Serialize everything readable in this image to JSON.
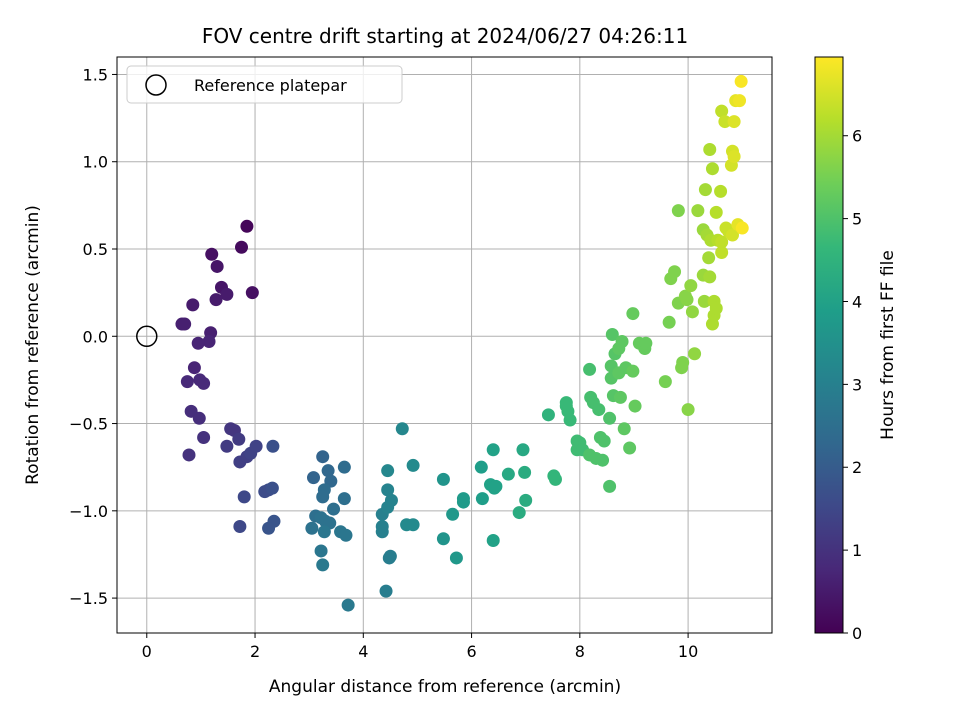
{
  "chart_data": {
    "type": "scatter",
    "title": "FOV centre drift starting at 2024/06/27 04:26:11",
    "xlabel": "Angular distance from reference (arcmin)",
    "ylabel": "Rotation from reference (arcmin)",
    "xlim": [
      -0.55,
      11.55
    ],
    "ylim": [
      -1.7,
      1.6
    ],
    "xticks": [
      0,
      2,
      4,
      6,
      8,
      10
    ],
    "xtick_labels": [
      "0",
      "2",
      "4",
      "6",
      "8",
      "10"
    ],
    "yticks": [
      -1.5,
      -1.0,
      -0.5,
      0.0,
      0.5,
      1.0,
      1.5
    ],
    "ytick_labels": [
      "−1.5",
      "−1.0",
      "−0.5",
      "0.0",
      "0.5",
      "1.0",
      "1.5"
    ],
    "grid": true,
    "legend": {
      "position": "top-left",
      "entries": [
        {
          "label": "Reference platepar",
          "marker": "open-circle"
        }
      ]
    },
    "reference_point": {
      "x": 0,
      "y": 0
    },
    "colorbar": {
      "label": "Hours from first FF file",
      "colormap": "viridis",
      "range": [
        0,
        6.95
      ],
      "ticks": [
        0,
        1,
        2,
        3,
        4,
        5,
        6
      ],
      "tick_labels": [
        "0",
        "1",
        "2",
        "3",
        "4",
        "5",
        "6"
      ]
    },
    "points": [
      {
        "x": 1.85,
        "y": 0.63,
        "h": 0.1
      },
      {
        "x": 1.75,
        "y": 0.51,
        "h": 0.2
      },
      {
        "x": 1.95,
        "y": 0.25,
        "h": 0.3
      },
      {
        "x": 1.2,
        "y": 0.47,
        "h": 0.3
      },
      {
        "x": 1.3,
        "y": 0.4,
        "h": 0.4
      },
      {
        "x": 1.38,
        "y": 0.28,
        "h": 0.4
      },
      {
        "x": 1.48,
        "y": 0.24,
        "h": 0.5
      },
      {
        "x": 1.28,
        "y": 0.21,
        "h": 0.5
      },
      {
        "x": 0.85,
        "y": 0.18,
        "h": 0.5
      },
      {
        "x": 0.65,
        "y": 0.07,
        "h": 0.6
      },
      {
        "x": 0.7,
        "y": 0.07,
        "h": 0.6
      },
      {
        "x": 1.18,
        "y": 0.02,
        "h": 0.6
      },
      {
        "x": 1.15,
        "y": -0.03,
        "h": 0.7
      },
      {
        "x": 0.95,
        "y": -0.04,
        "h": 0.7
      },
      {
        "x": 0.88,
        "y": -0.18,
        "h": 0.7
      },
      {
        "x": 0.75,
        "y": -0.26,
        "h": 0.8
      },
      {
        "x": 0.98,
        "y": -0.25,
        "h": 0.8
      },
      {
        "x": 1.05,
        "y": -0.27,
        "h": 0.8
      },
      {
        "x": 0.82,
        "y": -0.43,
        "h": 0.9
      },
      {
        "x": 0.97,
        "y": -0.47,
        "h": 0.9
      },
      {
        "x": 1.05,
        "y": -0.58,
        "h": 1.0
      },
      {
        "x": 0.78,
        "y": -0.68,
        "h": 1.0
      },
      {
        "x": 1.55,
        "y": -0.53,
        "h": 1.1
      },
      {
        "x": 1.62,
        "y": -0.54,
        "h": 1.1
      },
      {
        "x": 1.48,
        "y": -0.63,
        "h": 1.2
      },
      {
        "x": 1.7,
        "y": -0.59,
        "h": 1.2
      },
      {
        "x": 1.72,
        "y": -0.72,
        "h": 1.3
      },
      {
        "x": 1.85,
        "y": -0.69,
        "h": 1.3
      },
      {
        "x": 1.92,
        "y": -0.67,
        "h": 1.4
      },
      {
        "x": 2.02,
        "y": -0.63,
        "h": 1.4
      },
      {
        "x": 1.8,
        "y": -0.92,
        "h": 1.5
      },
      {
        "x": 1.72,
        "y": -1.09,
        "h": 1.5
      },
      {
        "x": 2.18,
        "y": -0.89,
        "h": 1.6
      },
      {
        "x": 2.25,
        "y": -0.88,
        "h": 1.6
      },
      {
        "x": 2.32,
        "y": -0.87,
        "h": 1.7
      },
      {
        "x": 2.33,
        "y": -0.63,
        "h": 1.7
      },
      {
        "x": 2.35,
        "y": -1.06,
        "h": 1.8
      },
      {
        "x": 2.25,
        "y": -1.1,
        "h": 1.8
      },
      {
        "x": 3.25,
        "y": -0.69,
        "h": 2.2
      },
      {
        "x": 3.08,
        "y": -0.81,
        "h": 2.2
      },
      {
        "x": 3.35,
        "y": -0.77,
        "h": 2.3
      },
      {
        "x": 3.4,
        "y": -0.83,
        "h": 2.3
      },
      {
        "x": 3.28,
        "y": -0.88,
        "h": 2.4
      },
      {
        "x": 3.25,
        "y": -0.92,
        "h": 2.4
      },
      {
        "x": 3.45,
        "y": -0.99,
        "h": 2.5
      },
      {
        "x": 3.65,
        "y": -0.75,
        "h": 2.4
      },
      {
        "x": 3.65,
        "y": -0.93,
        "h": 2.5
      },
      {
        "x": 3.12,
        "y": -1.03,
        "h": 2.5
      },
      {
        "x": 3.22,
        "y": -1.04,
        "h": 2.6
      },
      {
        "x": 3.3,
        "y": -1.06,
        "h": 2.6
      },
      {
        "x": 3.38,
        "y": -1.07,
        "h": 2.6
      },
      {
        "x": 3.05,
        "y": -1.1,
        "h": 2.6
      },
      {
        "x": 3.28,
        "y": -1.12,
        "h": 2.7
      },
      {
        "x": 3.58,
        "y": -1.12,
        "h": 2.7
      },
      {
        "x": 3.68,
        "y": -1.14,
        "h": 2.7
      },
      {
        "x": 3.22,
        "y": -1.23,
        "h": 2.7
      },
      {
        "x": 3.25,
        "y": -1.31,
        "h": 2.8
      },
      {
        "x": 3.72,
        "y": -1.54,
        "h": 2.8
      },
      {
        "x": 4.42,
        "y": -1.46,
        "h": 2.9
      },
      {
        "x": 4.48,
        "y": -1.27,
        "h": 2.9
      },
      {
        "x": 4.5,
        "y": -1.26,
        "h": 2.9
      },
      {
        "x": 4.35,
        "y": -1.12,
        "h": 3.0
      },
      {
        "x": 4.35,
        "y": -1.09,
        "h": 3.0
      },
      {
        "x": 4.35,
        "y": -1.02,
        "h": 3.0
      },
      {
        "x": 4.45,
        "y": -0.98,
        "h": 3.1
      },
      {
        "x": 4.52,
        "y": -0.94,
        "h": 3.1
      },
      {
        "x": 4.45,
        "y": -0.88,
        "h": 3.1
      },
      {
        "x": 4.45,
        "y": -0.77,
        "h": 3.2
      },
      {
        "x": 4.72,
        "y": -0.53,
        "h": 3.2
      },
      {
        "x": 4.92,
        "y": -0.74,
        "h": 3.3
      },
      {
        "x": 4.8,
        "y": -1.08,
        "h": 3.3
      },
      {
        "x": 4.92,
        "y": -1.08,
        "h": 3.3
      },
      {
        "x": 5.48,
        "y": -0.82,
        "h": 3.6
      },
      {
        "x": 5.48,
        "y": -1.16,
        "h": 3.6
      },
      {
        "x": 5.65,
        "y": -1.02,
        "h": 3.7
      },
      {
        "x": 5.72,
        "y": -1.27,
        "h": 3.7
      },
      {
        "x": 5.85,
        "y": -0.93,
        "h": 3.8
      },
      {
        "x": 5.85,
        "y": -0.95,
        "h": 3.8
      },
      {
        "x": 6.18,
        "y": -0.75,
        "h": 3.9
      },
      {
        "x": 6.2,
        "y": -0.93,
        "h": 3.9
      },
      {
        "x": 6.35,
        "y": -0.85,
        "h": 4.0
      },
      {
        "x": 6.4,
        "y": -0.65,
        "h": 4.0
      },
      {
        "x": 6.42,
        "y": -0.87,
        "h": 4.0
      },
      {
        "x": 6.45,
        "y": -0.86,
        "h": 4.0
      },
      {
        "x": 6.4,
        "y": -1.17,
        "h": 4.0
      },
      {
        "x": 6.68,
        "y": -0.79,
        "h": 4.2
      },
      {
        "x": 6.95,
        "y": -0.65,
        "h": 4.2
      },
      {
        "x": 6.98,
        "y": -0.78,
        "h": 4.3
      },
      {
        "x": 6.88,
        "y": -1.01,
        "h": 4.3
      },
      {
        "x": 7.0,
        "y": -0.94,
        "h": 4.3
      },
      {
        "x": 7.42,
        "y": -0.45,
        "h": 4.5
      },
      {
        "x": 7.52,
        "y": -0.8,
        "h": 4.6
      },
      {
        "x": 7.55,
        "y": -0.82,
        "h": 4.6
      },
      {
        "x": 7.75,
        "y": -0.4,
        "h": 4.7
      },
      {
        "x": 7.78,
        "y": -0.43,
        "h": 4.7
      },
      {
        "x": 7.82,
        "y": -0.48,
        "h": 4.7
      },
      {
        "x": 7.75,
        "y": -0.38,
        "h": 4.7
      },
      {
        "x": 7.95,
        "y": -0.6,
        "h": 4.8
      },
      {
        "x": 8.0,
        "y": -0.61,
        "h": 4.8
      },
      {
        "x": 7.95,
        "y": -0.65,
        "h": 4.8
      },
      {
        "x": 8.05,
        "y": -0.65,
        "h": 4.8
      },
      {
        "x": 8.18,
        "y": -0.19,
        "h": 4.9
      },
      {
        "x": 8.2,
        "y": -0.35,
        "h": 4.9
      },
      {
        "x": 8.25,
        "y": -0.38,
        "h": 4.9
      },
      {
        "x": 8.35,
        "y": -0.42,
        "h": 4.9
      },
      {
        "x": 8.18,
        "y": -0.68,
        "h": 5.0
      },
      {
        "x": 8.3,
        "y": -0.7,
        "h": 5.0
      },
      {
        "x": 8.42,
        "y": -0.71,
        "h": 5.0
      },
      {
        "x": 8.38,
        "y": -0.58,
        "h": 5.0
      },
      {
        "x": 8.45,
        "y": -0.6,
        "h": 5.0
      },
      {
        "x": 8.55,
        "y": -0.47,
        "h": 5.0
      },
      {
        "x": 8.55,
        "y": -0.86,
        "h": 5.0
      },
      {
        "x": 8.6,
        "y": 0.01,
        "h": 5.1
      },
      {
        "x": 8.58,
        "y": -0.17,
        "h": 5.1
      },
      {
        "x": 8.65,
        "y": -0.1,
        "h": 5.1
      },
      {
        "x": 8.58,
        "y": -0.24,
        "h": 5.1
      },
      {
        "x": 8.62,
        "y": -0.34,
        "h": 5.1
      },
      {
        "x": 8.72,
        "y": -0.07,
        "h": 5.2
      },
      {
        "x": 8.78,
        "y": -0.03,
        "h": 5.2
      },
      {
        "x": 8.72,
        "y": -0.21,
        "h": 5.2
      },
      {
        "x": 8.75,
        "y": -0.35,
        "h": 5.2
      },
      {
        "x": 8.85,
        "y": -0.18,
        "h": 5.2
      },
      {
        "x": 8.82,
        "y": -0.53,
        "h": 5.2
      },
      {
        "x": 8.92,
        "y": -0.64,
        "h": 5.2
      },
      {
        "x": 8.98,
        "y": 0.13,
        "h": 5.3
      },
      {
        "x": 8.98,
        "y": -0.2,
        "h": 5.3
      },
      {
        "x": 9.02,
        "y": -0.4,
        "h": 5.3
      },
      {
        "x": 9.1,
        "y": -0.04,
        "h": 5.3
      },
      {
        "x": 9.2,
        "y": -0.07,
        "h": 5.3
      },
      {
        "x": 9.22,
        "y": -0.04,
        "h": 5.3
      },
      {
        "x": 9.58,
        "y": -0.26,
        "h": 5.5
      },
      {
        "x": 9.65,
        "y": 0.08,
        "h": 5.5
      },
      {
        "x": 9.68,
        "y": 0.33,
        "h": 5.6
      },
      {
        "x": 9.75,
        "y": 0.37,
        "h": 5.6
      },
      {
        "x": 9.82,
        "y": 0.72,
        "h": 5.6
      },
      {
        "x": 9.82,
        "y": 0.19,
        "h": 5.6
      },
      {
        "x": 9.9,
        "y": -0.15,
        "h": 5.6
      },
      {
        "x": 9.88,
        "y": -0.18,
        "h": 5.6
      },
      {
        "x": 9.95,
        "y": 0.23,
        "h": 5.7
      },
      {
        "x": 9.98,
        "y": 0.21,
        "h": 5.7
      },
      {
        "x": 10.0,
        "y": -0.42,
        "h": 5.7
      },
      {
        "x": 10.05,
        "y": 0.29,
        "h": 5.8
      },
      {
        "x": 10.08,
        "y": 0.14,
        "h": 5.8
      },
      {
        "x": 10.12,
        "y": -0.1,
        "h": 5.8
      },
      {
        "x": 10.18,
        "y": 0.72,
        "h": 5.9
      },
      {
        "x": 10.28,
        "y": 0.61,
        "h": 5.9
      },
      {
        "x": 10.28,
        "y": 0.35,
        "h": 5.9
      },
      {
        "x": 10.3,
        "y": 0.2,
        "h": 5.9
      },
      {
        "x": 10.32,
        "y": 0.84,
        "h": 6.0
      },
      {
        "x": 10.35,
        "y": 0.58,
        "h": 6.0
      },
      {
        "x": 10.38,
        "y": 0.45,
        "h": 6.0
      },
      {
        "x": 10.4,
        "y": 0.34,
        "h": 6.0
      },
      {
        "x": 10.4,
        "y": 1.07,
        "h": 6.1
      },
      {
        "x": 10.42,
        "y": 0.55,
        "h": 6.1
      },
      {
        "x": 10.45,
        "y": 0.07,
        "h": 6.1
      },
      {
        "x": 10.45,
        "y": 0.96,
        "h": 6.1
      },
      {
        "x": 10.48,
        "y": 0.12,
        "h": 6.1
      },
      {
        "x": 10.48,
        "y": 0.2,
        "h": 6.1
      },
      {
        "x": 10.52,
        "y": 0.16,
        "h": 6.1
      },
      {
        "x": 10.52,
        "y": 0.71,
        "h": 6.2
      },
      {
        "x": 10.55,
        "y": 0.55,
        "h": 6.2
      },
      {
        "x": 10.6,
        "y": 0.83,
        "h": 6.2
      },
      {
        "x": 10.62,
        "y": 1.29,
        "h": 6.3
      },
      {
        "x": 10.62,
        "y": 0.48,
        "h": 6.3
      },
      {
        "x": 10.62,
        "y": 0.54,
        "h": 6.3
      },
      {
        "x": 10.68,
        "y": 1.23,
        "h": 6.4
      },
      {
        "x": 10.7,
        "y": 0.62,
        "h": 6.4
      },
      {
        "x": 10.75,
        "y": 0.6,
        "h": 6.4
      },
      {
        "x": 10.8,
        "y": 0.98,
        "h": 6.5
      },
      {
        "x": 10.82,
        "y": 0.58,
        "h": 6.5
      },
      {
        "x": 10.82,
        "y": 1.06,
        "h": 6.5
      },
      {
        "x": 10.85,
        "y": 1.03,
        "h": 6.6
      },
      {
        "x": 10.85,
        "y": 1.23,
        "h": 6.6
      },
      {
        "x": 10.88,
        "y": 1.35,
        "h": 6.7
      },
      {
        "x": 10.92,
        "y": 0.64,
        "h": 6.7
      },
      {
        "x": 10.95,
        "y": 1.35,
        "h": 6.8
      },
      {
        "x": 10.98,
        "y": 1.46,
        "h": 6.9
      },
      {
        "x": 11.0,
        "y": 0.62,
        "h": 6.9
      }
    ]
  }
}
